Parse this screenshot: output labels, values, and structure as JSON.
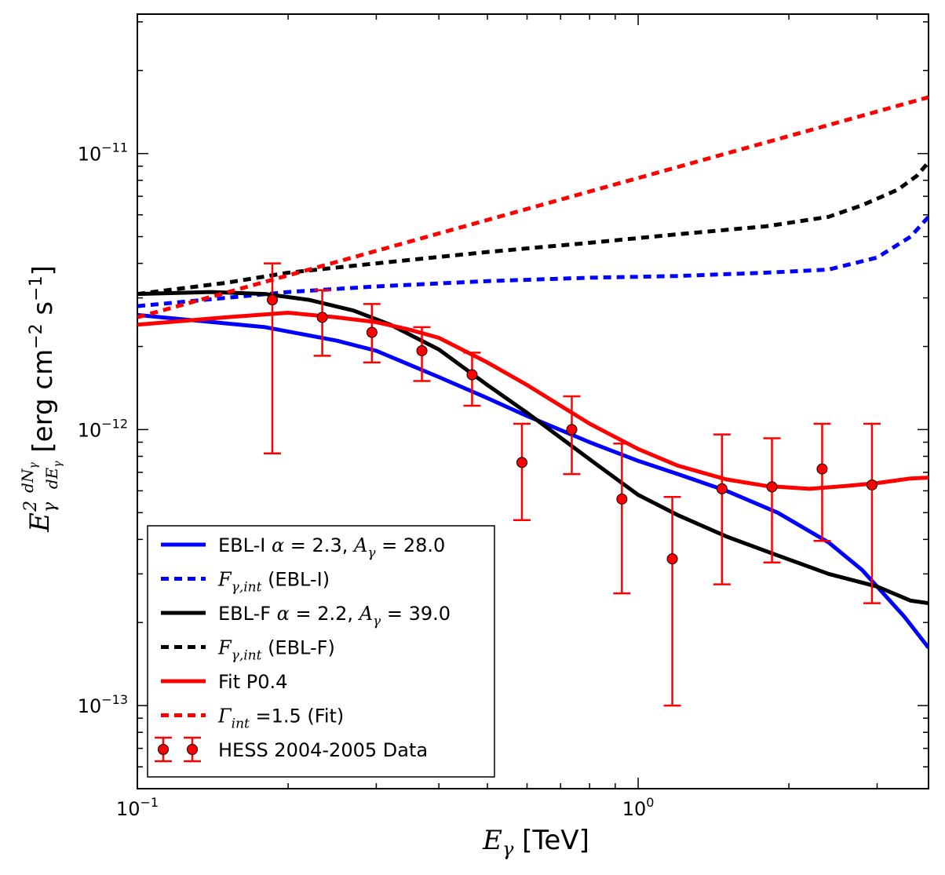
{
  "chart_data": {
    "type": "line",
    "xscale": "log",
    "yscale": "log",
    "xlim": [
      0.1,
      3.8
    ],
    "ylim": [
      5e-14,
      3.2e-11
    ],
    "x_ticks": [
      {
        "value": 0.1,
        "base": "10",
        "exp": "−1"
      },
      {
        "value": 1.0,
        "base": "10",
        "exp": "0"
      }
    ],
    "y_ticks": [
      {
        "value": 1e-11,
        "base": "10",
        "exp": "−11"
      },
      {
        "value": 1e-12,
        "base": "10",
        "exp": "−12"
      },
      {
        "value": 1e-13,
        "base": "10",
        "exp": "−13"
      }
    ],
    "xlabel": {
      "math": "E",
      "sub": "γ",
      "text": " [TeV]"
    },
    "ylabel": {
      "units": "[erg cm",
      "units_exp1": "−2",
      "units_mid": " s",
      "units_exp2": "−1",
      "units_end": "]",
      "math_E": "E",
      "math_sup": "2",
      "math_sub": "γ",
      "frac_num": "dN",
      "frac_num_sub": "γ",
      "frac_den": "dE",
      "frac_den_sub": "γ"
    },
    "series": [
      {
        "name": "EBL-I",
        "color": "#0000ff",
        "style": "solid",
        "x": [
          0.1,
          0.18,
          0.25,
          0.3,
          0.4,
          0.5,
          0.6,
          0.8,
          1.0,
          1.2,
          1.5,
          1.9,
          2.4,
          2.8,
          3.4,
          3.8
        ],
        "y": [
          2.6e-12,
          2.35e-12,
          2.1e-12,
          1.93e-12,
          1.55e-12,
          1.3e-12,
          1.12e-12,
          9e-13,
          7.7e-13,
          6.9e-13,
          6e-13,
          5e-13,
          3.9e-13,
          3.1e-13,
          2.1e-13,
          1.62e-13
        ]
      },
      {
        "name": "F_int (EBL-I)",
        "color": "#0000ff",
        "style": "dotted",
        "x": [
          0.1,
          0.15,
          0.2,
          0.3,
          0.5,
          0.8,
          1.2,
          1.8,
          2.4,
          3.0,
          3.5,
          3.8
        ],
        "y": [
          2.8e-12,
          3e-12,
          3.15e-12,
          3.3e-12,
          3.45e-12,
          3.55e-12,
          3.6e-12,
          3.7e-12,
          3.8e-12,
          4.2e-12,
          5e-12,
          5.9e-12
        ]
      },
      {
        "name": "EBL-F",
        "color": "#000000",
        "style": "solid",
        "x": [
          0.1,
          0.14,
          0.18,
          0.22,
          0.27,
          0.32,
          0.4,
          0.5,
          0.6,
          0.8,
          1.0,
          1.2,
          1.5,
          1.9,
          2.4,
          3.0,
          3.5,
          3.8
        ],
        "y": [
          3.1e-12,
          3.15e-12,
          3.1e-12,
          2.95e-12,
          2.7e-12,
          2.4e-12,
          1.95e-12,
          1.45e-12,
          1.15e-12,
          7.8e-13,
          5.8e-13,
          4.9e-13,
          4.1e-13,
          3.5e-13,
          3e-13,
          2.7e-13,
          2.4e-13,
          2.35e-13
        ]
      },
      {
        "name": "F_int (EBL-F)",
        "color": "#000000",
        "style": "dotted",
        "x": [
          0.1,
          0.15,
          0.2,
          0.3,
          0.5,
          0.8,
          1.2,
          1.8,
          2.4,
          2.8,
          3.3,
          3.6,
          3.8
        ],
        "y": [
          3.1e-12,
          3.4e-12,
          3.7e-12,
          4e-12,
          4.4e-12,
          4.75e-12,
          5.1e-12,
          5.45e-12,
          5.9e-12,
          6.5e-12,
          7.4e-12,
          8.3e-12,
          9.3e-12
        ]
      },
      {
        "name": "Fit P0.4",
        "color": "#ff0000",
        "style": "solid",
        "x": [
          0.1,
          0.15,
          0.2,
          0.25,
          0.3,
          0.35,
          0.4,
          0.5,
          0.6,
          0.8,
          1.0,
          1.2,
          1.5,
          1.8,
          2.2,
          2.6,
          3.0,
          3.5,
          3.8
        ],
        "y": [
          2.4e-12,
          2.55e-12,
          2.65e-12,
          2.55e-12,
          2.45e-12,
          2.3e-12,
          2.15e-12,
          1.75e-12,
          1.45e-12,
          1.05e-12,
          8.5e-13,
          7.4e-13,
          6.6e-13,
          6.25e-13,
          6.1e-13,
          6.25e-13,
          6.4e-13,
          6.65e-13,
          6.7e-13
        ]
      },
      {
        "name": "Gamma_int=1.5 (Fit)",
        "color": "#ff0000",
        "style": "dotted",
        "x": [
          0.1,
          3.8
        ],
        "y": [
          2.55e-12,
          1.6e-11
        ]
      }
    ],
    "data_points": {
      "name": "HESS 2004-2005 Data",
      "color": "#ff0000",
      "points": [
        {
          "x": 0.186,
          "y": 2.95e-12,
          "ylo": 8.2e-13,
          "yhi": 4e-12
        },
        {
          "x": 0.234,
          "y": 2.55e-12,
          "ylo": 1.85e-12,
          "yhi": 3.2e-12
        },
        {
          "x": 0.294,
          "y": 2.25e-12,
          "ylo": 1.75e-12,
          "yhi": 2.85e-12
        },
        {
          "x": 0.37,
          "y": 1.93e-12,
          "ylo": 1.5e-12,
          "yhi": 2.35e-12
        },
        {
          "x": 0.466,
          "y": 1.58e-12,
          "ylo": 1.22e-12,
          "yhi": 1.9e-12
        },
        {
          "x": 0.586,
          "y": 7.6e-13,
          "ylo": 4.7e-13,
          "yhi": 1.05e-12
        },
        {
          "x": 0.737,
          "y": 1e-12,
          "ylo": 6.9e-13,
          "yhi": 1.32e-12
        },
        {
          "x": 0.928,
          "y": 5.6e-13,
          "ylo": 2.55e-13,
          "yhi": 8.9e-13
        },
        {
          "x": 1.17,
          "y": 3.4e-13,
          "ylo": 1e-13,
          "yhi": 5.7e-13
        },
        {
          "x": 1.47,
          "y": 6.1e-13,
          "ylo": 2.75e-13,
          "yhi": 9.6e-13
        },
        {
          "x": 1.85,
          "y": 6.2e-13,
          "ylo": 3.3e-13,
          "yhi": 9.3e-13
        },
        {
          "x": 2.33,
          "y": 7.2e-13,
          "ylo": 3.95e-13,
          "yhi": 1.05e-12
        },
        {
          "x": 2.93,
          "y": 6.3e-13,
          "ylo": 2.35e-13,
          "yhi": 1.05e-12
        }
      ]
    },
    "legend": {
      "position": "lower-left",
      "entries": [
        {
          "series": 0,
          "parts": [
            {
              "t": "EBL-I "
            },
            {
              "m": "α"
            },
            {
              "t": " = 2.3,  "
            },
            {
              "m": "A"
            },
            {
              "msub": "γ"
            },
            {
              "t": " = 28.0"
            }
          ]
        },
        {
          "series": 1,
          "parts": [
            {
              "m": "F"
            },
            {
              "msub": "γ,int"
            },
            {
              "t": " (EBL-I)"
            }
          ]
        },
        {
          "series": 2,
          "parts": [
            {
              "t": "EBL-F "
            },
            {
              "m": "α"
            },
            {
              "t": " = 2.2,  "
            },
            {
              "m": "A"
            },
            {
              "msub": "γ"
            },
            {
              "t": " = 39.0"
            }
          ]
        },
        {
          "series": 3,
          "parts": [
            {
              "m": "F"
            },
            {
              "msub": "γ,int"
            },
            {
              "t": " (EBL-F)"
            }
          ]
        },
        {
          "series": 4,
          "parts": [
            {
              "t": "Fit P0.4"
            }
          ]
        },
        {
          "series": 5,
          "parts": [
            {
              "m": "Γ"
            },
            {
              "msub": "int"
            },
            {
              "t": " =1.5  (Fit)"
            }
          ]
        },
        {
          "series": "data",
          "parts": [
            {
              "t": "HESS 2004-2005 Data"
            }
          ]
        }
      ]
    }
  }
}
